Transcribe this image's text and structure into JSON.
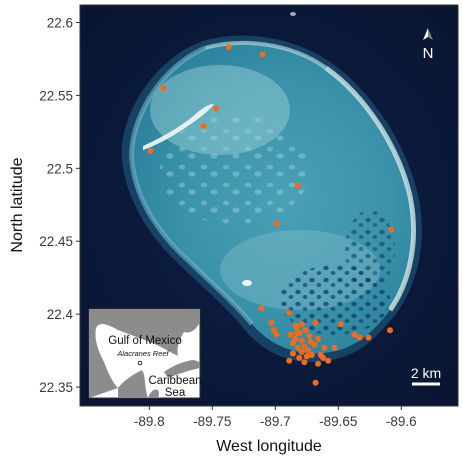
{
  "chart_data": {
    "type": "scatter",
    "xlabel": "West longitude",
    "ylabel": "North latitude",
    "xlim": [
      -89.855,
      -89.555
    ],
    "ylim": [
      22.337,
      22.612
    ],
    "x_ticks": [
      -89.8,
      -89.75,
      -89.7,
      -89.65,
      -89.6
    ],
    "x_tick_labels": [
      "-89.8",
      "-89.75",
      "-89.7",
      "-89.65",
      "-89.6"
    ],
    "y_ticks": [
      22.35,
      22.4,
      22.45,
      22.5,
      22.55,
      22.6
    ],
    "y_tick_labels": [
      "22.35",
      "22.4",
      "22.45",
      "22.5",
      "22.55",
      "22.6"
    ],
    "point_color": "#f26b1d",
    "points": [
      {
        "x": -89.737,
        "y": 22.583
      },
      {
        "x": -89.71,
        "y": 22.578
      },
      {
        "x": -89.789,
        "y": 22.555
      },
      {
        "x": -89.747,
        "y": 22.541
      },
      {
        "x": -89.757,
        "y": 22.529
      },
      {
        "x": -89.799,
        "y": 22.512
      },
      {
        "x": -89.682,
        "y": 22.488
      },
      {
        "x": -89.699,
        "y": 22.462
      },
      {
        "x": -89.608,
        "y": 22.458
      },
      {
        "x": -89.711,
        "y": 22.404
      },
      {
        "x": -89.689,
        "y": 22.401
      },
      {
        "x": -89.703,
        "y": 22.394
      },
      {
        "x": -89.701,
        "y": 22.389
      },
      {
        "x": -89.699,
        "y": 22.386
      },
      {
        "x": -89.668,
        "y": 22.394
      },
      {
        "x": -89.648,
        "y": 22.393
      },
      {
        "x": -89.637,
        "y": 22.386
      },
      {
        "x": -89.633,
        "y": 22.384
      },
      {
        "x": -89.626,
        "y": 22.384
      },
      {
        "x": -89.609,
        "y": 22.389
      },
      {
        "x": -89.653,
        "y": 22.377
      },
      {
        "x": -89.683,
        "y": 22.391
      },
      {
        "x": -89.681,
        "y": 22.387
      },
      {
        "x": -89.684,
        "y": 22.383
      },
      {
        "x": -89.679,
        "y": 22.382
      },
      {
        "x": -89.676,
        "y": 22.389
      },
      {
        "x": -89.673,
        "y": 22.385
      },
      {
        "x": -89.672,
        "y": 22.381
      },
      {
        "x": -89.677,
        "y": 22.378
      },
      {
        "x": -89.682,
        "y": 22.377
      },
      {
        "x": -89.686,
        "y": 22.38
      },
      {
        "x": -89.688,
        "y": 22.386
      },
      {
        "x": -89.684,
        "y": 22.392
      },
      {
        "x": -89.679,
        "y": 22.393
      },
      {
        "x": -89.674,
        "y": 22.375
      },
      {
        "x": -89.679,
        "y": 22.374
      },
      {
        "x": -89.669,
        "y": 22.379
      },
      {
        "x": -89.666,
        "y": 22.383
      },
      {
        "x": -89.681,
        "y": 22.37
      },
      {
        "x": -89.675,
        "y": 22.371
      },
      {
        "x": -89.689,
        "y": 22.368
      },
      {
        "x": -89.671,
        "y": 22.372
      },
      {
        "x": -89.664,
        "y": 22.372
      },
      {
        "x": -89.661,
        "y": 22.377
      },
      {
        "x": -89.662,
        "y": 22.37
      },
      {
        "x": -89.686,
        "y": 22.373
      },
      {
        "x": -89.677,
        "y": 22.367
      },
      {
        "x": -89.666,
        "y": 22.366
      },
      {
        "x": -89.658,
        "y": 22.368
      },
      {
        "x": -89.683,
        "y": 22.387
      },
      {
        "x": -89.668,
        "y": 22.353
      }
    ]
  },
  "map": {
    "north_arrow_label": "N",
    "scale_bar_label": "2 km",
    "inset": {
      "gulf_label": "Gulf of Mexico",
      "reef_label": "Alacranes Reef",
      "sea_label_line1": "Caribbean",
      "sea_label_line2": "Sea"
    }
  },
  "colors": {
    "ocean": "#0b1a3a",
    "reef_shallow": "#86c2cf",
    "reef_mid": "#2f8ea6",
    "reef_crest": "#d9ecea",
    "land_inset": "#8c8c8c",
    "points": "#f26b1d"
  }
}
